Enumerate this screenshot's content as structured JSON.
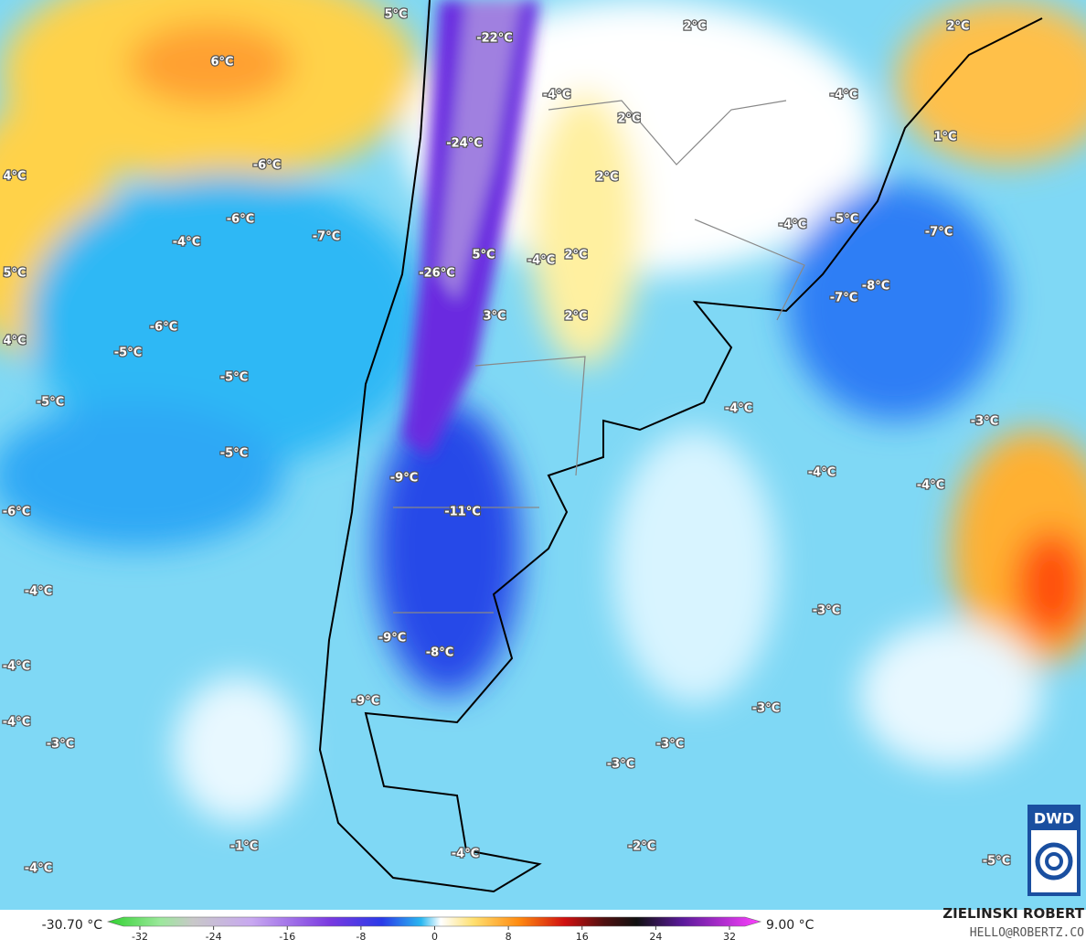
{
  "map": {
    "labels": [
      "5°C",
      "-22°C",
      "2°C",
      "2°C",
      "6°C",
      "-4°C",
      "-4°C",
      "2°C",
      "1°C",
      "-24°C",
      "-6°C",
      "4°C",
      "2°C",
      "-6°C",
      "-4°C",
      "-5°C",
      "-7°C",
      "-4°C",
      "-7°C",
      "5°C",
      "-4°C",
      "2°C",
      "5°C",
      "-26°C",
      "-8°C",
      "-7°C",
      "3°C",
      "2°C",
      "-6°C",
      "4°C",
      "-5°C",
      "-5°C",
      "-5°C",
      "-4°C",
      "-3°C",
      "-5°C",
      "-4°C",
      "-9°C",
      "-4°C",
      "-6°C",
      "-11°C",
      "-4°C",
      "-3°C",
      "-9°C",
      "-8°C",
      "-4°C",
      "-3°C",
      "-9°C",
      "-4°C",
      "-3°C",
      "-3°C",
      "-3°C",
      "-1°C",
      "-2°C",
      "-4°C",
      "-5°C",
      "-4°C"
    ]
  },
  "colorbar": {
    "min_label": "-30.70 °C",
    "max_label": "9.00 °C",
    "ticks": [
      -32,
      -24,
      -16,
      -8,
      0,
      8,
      16,
      24,
      32
    ]
  },
  "credits": {
    "logo": "DWD",
    "author": "ZIELINSKI ROBERT",
    "contact": "HELLO@ROBERTZ.CO"
  }
}
